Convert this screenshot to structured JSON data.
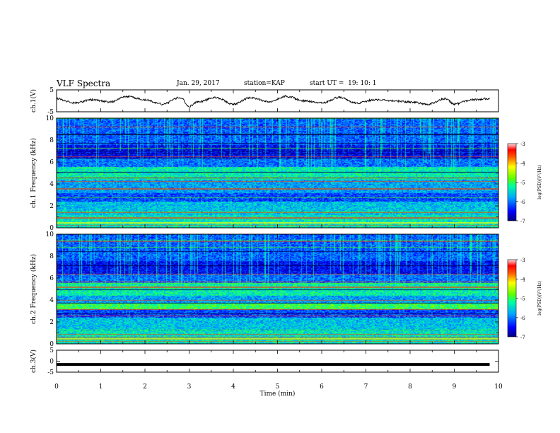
{
  "header": {
    "title": "VLF Spectra",
    "date": "Jan. 29, 2017",
    "station_label": "station=",
    "station": "KAP",
    "start_label": "start UT =",
    "start_time": "19: 10: 1"
  },
  "chart_data": [
    {
      "type": "line",
      "name": "ch1-waveform",
      "ylabel": "ch.1(V)",
      "ylim": [
        -5,
        5
      ],
      "y_ticks": [
        "5",
        "-5"
      ],
      "xlim": [
        0,
        10
      ],
      "x": [
        0,
        0.4,
        0.8,
        1.2,
        1.6,
        2.0,
        2.4,
        2.8,
        3.0,
        3.2,
        3.6,
        4.0,
        4.4,
        4.8,
        5.2,
        5.6,
        6.0,
        6.4,
        6.8,
        7.2,
        7.6,
        8.0,
        8.4,
        8.8,
        9.0,
        9.4,
        9.8
      ],
      "y": [
        1.0,
        -1.0,
        0.5,
        -0.5,
        2.0,
        0.5,
        -1.5,
        1.5,
        -2.5,
        -0.5,
        1.5,
        -1.5,
        1.5,
        -0.5,
        2.0,
        0.0,
        -1.0,
        1.5,
        -1.0,
        0.5,
        0.0,
        -0.5,
        -1.5,
        1.0,
        -1.5,
        0.5,
        1.0
      ],
      "color": "#000000"
    },
    {
      "type": "heatmap",
      "name": "ch1-spectrogram",
      "ylabel": "ch.1 Frequency (kHz)",
      "ylim": [
        0,
        10
      ],
      "y_ticks": [
        "0",
        "2",
        "4",
        "6",
        "8",
        "10"
      ],
      "xlim": [
        0,
        10
      ],
      "colorbar": {
        "label": "log(PSD)(V²/Hz)",
        "range": [
          -7,
          -3
        ],
        "ticks": [
          "-3",
          "-4",
          "-5",
          "-6",
          "-7"
        ]
      }
    },
    {
      "type": "heatmap",
      "name": "ch2-spectrogram",
      "ylabel": "ch.2 Frequency (kHz)",
      "ylim": [
        0,
        10
      ],
      "y_ticks": [
        "0",
        "2",
        "4",
        "6",
        "8",
        "10"
      ],
      "xlim": [
        0,
        10
      ],
      "colorbar": {
        "label": "log(PSD)(V²/Hz)",
        "range": [
          -7,
          -3
        ],
        "ticks": [
          "-3",
          "-4",
          "-5",
          "-6",
          "-7"
        ]
      }
    },
    {
      "type": "line",
      "name": "ch3-waveform",
      "ylabel": "ch.3(V)",
      "ylim": [
        -5,
        5
      ],
      "y_ticks": [
        "5",
        "0",
        "-5"
      ],
      "xlim": [
        0,
        10
      ],
      "x": [
        0,
        9.8
      ],
      "y": [
        -1.5,
        -1.5
      ],
      "color": "#000000"
    }
  ],
  "x_axis": {
    "label": "Time (min)",
    "ticks": [
      "0",
      "1",
      "2",
      "3",
      "4",
      "5",
      "6",
      "7",
      "8",
      "9",
      "10"
    ]
  }
}
